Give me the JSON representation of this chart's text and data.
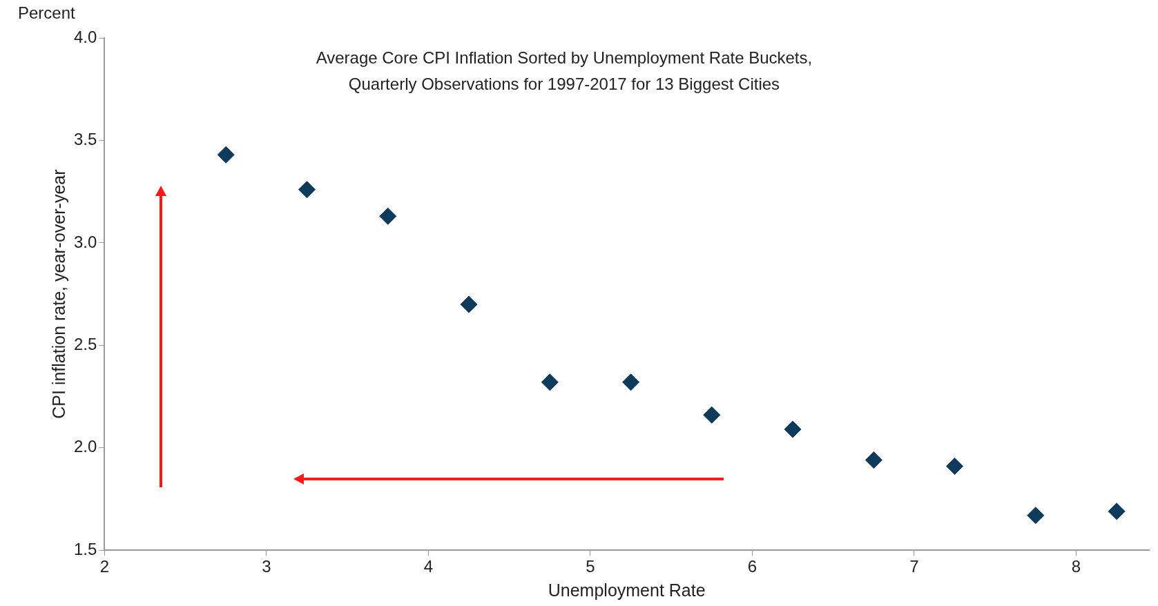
{
  "chart_data": {
    "type": "scatter",
    "title": "Average Core CPI Inflation Sorted by Unemployment Rate Buckets,\nQuarterly Observations for 1997-2017 for 13 Biggest Cities",
    "xlabel": "Unemployment Rate",
    "ylabel": "CPI inflation rate, year-over-year",
    "annotations": [
      "Percent"
    ],
    "x": [
      2.75,
      3.25,
      3.75,
      4.25,
      4.75,
      5.25,
      5.75,
      6.25,
      6.75,
      7.25,
      7.75,
      8.25
    ],
    "series": [
      {
        "color": "#0e3a5c",
        "values": [
          3.43,
          3.26,
          3.13,
          2.7,
          2.32,
          2.32,
          2.16,
          2.09,
          1.94,
          1.91,
          1.67,
          1.69
        ]
      }
    ],
    "xlim": [
      2,
      8.45
    ],
    "xticks": [
      2,
      3,
      4,
      5,
      6,
      7,
      8
    ],
    "ylim": [
      1.5,
      4.0
    ],
    "yticks": [
      1.5,
      {
        "value": 2,
        "label": "2.0"
      },
      2.5,
      {
        "value": 3,
        "label": "3.0"
      },
      3.5,
      {
        "value": 4,
        "label": "4.0"
      }
    ],
    "grid": false,
    "legend": false,
    "marker": "diamond"
  }
}
